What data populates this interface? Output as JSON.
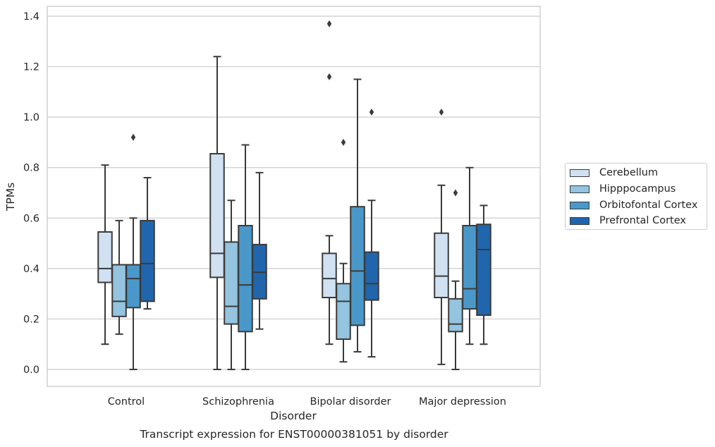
{
  "chart_data": {
    "type": "box",
    "xlabel": "Disorder",
    "ylabel": "TPMs",
    "caption": "Transcript expression for ENST00000381051 by disorder",
    "ylim": [
      -0.065,
      1.44
    ],
    "yticks": [
      0.0,
      0.2,
      0.4,
      0.6,
      0.8,
      1.0,
      1.2,
      1.4
    ],
    "ytick_labels": [
      "0.0",
      "0.2",
      "0.4",
      "0.6",
      "0.8",
      "1.0",
      "1.2",
      "1.4"
    ],
    "grid": "horizontal",
    "legend_position": "right",
    "categories": [
      "Control",
      "Schizophrenia",
      "Bipolar disorder",
      "Major depression"
    ],
    "series": [
      {
        "name": "Cerebellum",
        "color": "#d0e1f2",
        "boxes": [
          {
            "whislo": 0.1,
            "q1": 0.345,
            "med": 0.4,
            "q3": 0.545,
            "whishi": 0.81,
            "fliers": []
          },
          {
            "whislo": 0.0,
            "q1": 0.365,
            "med": 0.46,
            "q3": 0.855,
            "whishi": 1.24,
            "fliers": []
          },
          {
            "whislo": 0.1,
            "q1": 0.285,
            "med": 0.36,
            "q3": 0.46,
            "whishi": 0.53,
            "fliers": [
              1.16,
              1.37
            ]
          },
          {
            "whislo": 0.02,
            "q1": 0.285,
            "med": 0.37,
            "q3": 0.54,
            "whishi": 0.73,
            "fliers": [
              1.02
            ]
          }
        ]
      },
      {
        "name": "Hipppocampus",
        "color": "#94c4df",
        "boxes": [
          {
            "whislo": 0.14,
            "q1": 0.21,
            "med": 0.27,
            "q3": 0.415,
            "whishi": 0.59,
            "fliers": []
          },
          {
            "whislo": 0.0,
            "q1": 0.18,
            "med": 0.25,
            "q3": 0.505,
            "whishi": 0.67,
            "fliers": []
          },
          {
            "whislo": 0.03,
            "q1": 0.12,
            "med": 0.27,
            "q3": 0.34,
            "whishi": 0.42,
            "fliers": [
              0.9
            ]
          },
          {
            "whislo": 0.0,
            "q1": 0.15,
            "med": 0.18,
            "q3": 0.28,
            "whishi": 0.35,
            "fliers": [
              0.7
            ]
          }
        ]
      },
      {
        "name": "Orbitofontal Cortex",
        "color": "#4a98c9",
        "boxes": [
          {
            "whislo": 0.0,
            "q1": 0.245,
            "med": 0.36,
            "q3": 0.415,
            "whishi": 0.6,
            "fliers": [
              0.92
            ]
          },
          {
            "whislo": 0.0,
            "q1": 0.15,
            "med": 0.335,
            "q3": 0.57,
            "whishi": 0.89,
            "fliers": []
          },
          {
            "whislo": 0.07,
            "q1": 0.175,
            "med": 0.39,
            "q3": 0.645,
            "whishi": 1.15,
            "fliers": []
          },
          {
            "whislo": 0.1,
            "q1": 0.24,
            "med": 0.32,
            "q3": 0.57,
            "whishi": 0.8,
            "fliers": []
          }
        ]
      },
      {
        "name": "Prefrontal Cortex",
        "color": "#2166ac",
        "boxes": [
          {
            "whislo": 0.24,
            "q1": 0.27,
            "med": 0.42,
            "q3": 0.59,
            "whishi": 0.76,
            "fliers": []
          },
          {
            "whislo": 0.16,
            "q1": 0.28,
            "med": 0.385,
            "q3": 0.495,
            "whishi": 0.78,
            "fliers": []
          },
          {
            "whislo": 0.05,
            "q1": 0.275,
            "med": 0.34,
            "q3": 0.465,
            "whishi": 0.67,
            "fliers": [
              1.02
            ]
          },
          {
            "whislo": 0.1,
            "q1": 0.215,
            "med": 0.475,
            "q3": 0.575,
            "whishi": 0.65,
            "fliers": []
          }
        ]
      }
    ]
  }
}
